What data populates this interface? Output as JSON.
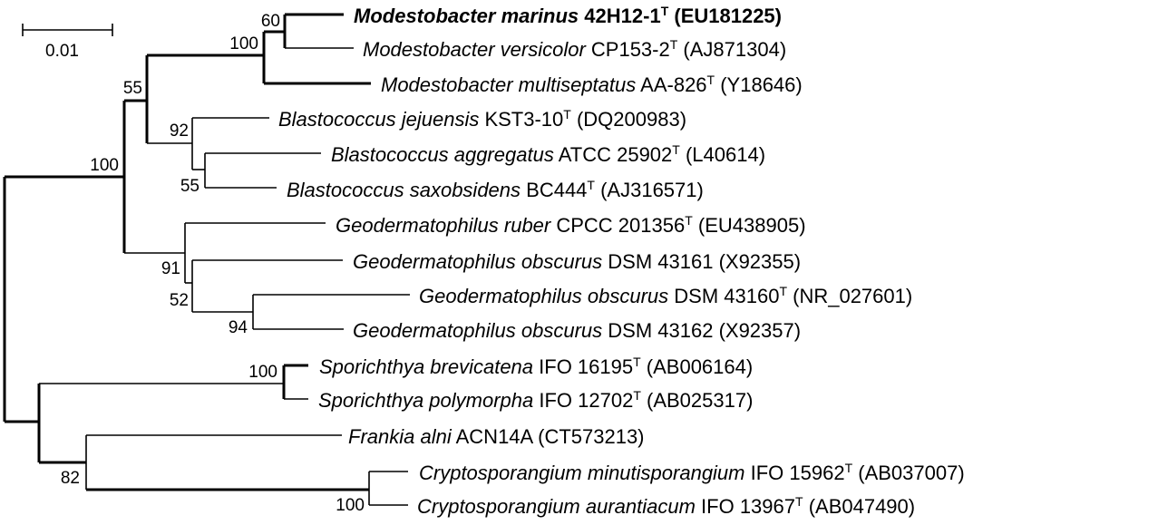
{
  "scale_bar": {
    "label": "0.01"
  },
  "taxa": [
    {
      "id": "mmar",
      "name": "Modestobacter marinus",
      "strain": "42H12-1",
      "type_strain": true,
      "accession": "(EU181225)",
      "bold": true
    },
    {
      "id": "mver",
      "name": "Modestobacter versicolor",
      "strain": "CP153-2",
      "type_strain": true,
      "accession": "(AJ871304)",
      "bold": false
    },
    {
      "id": "mmul",
      "name": "Modestobacter multiseptatus",
      "strain": "AA-826",
      "type_strain": true,
      "accession": "(Y18646)",
      "bold": false
    },
    {
      "id": "bjej",
      "name": "Blastococcus jejuensis",
      "strain": "KST3-10",
      "type_strain": true,
      "accession": "(DQ200983)",
      "bold": false
    },
    {
      "id": "bagg",
      "name": "Blastococcus aggregatus",
      "strain": "ATCC 25902",
      "type_strain": true,
      "accession": "(L40614)",
      "bold": false
    },
    {
      "id": "bsax",
      "name": "Blastococcus saxobsidens",
      "strain": "BC444",
      "type_strain": true,
      "accession": "(AJ316571)",
      "bold": false
    },
    {
      "id": "grub",
      "name": "Geodermatophilus ruber",
      "strain": "CPCC 201356",
      "type_strain": true,
      "accession": "(EU438905)",
      "bold": false
    },
    {
      "id": "gob1",
      "name": "Geodermatophilus obscurus",
      "strain": "DSM 43161",
      "type_strain": false,
      "accession": "(X92355)",
      "bold": false
    },
    {
      "id": "gob2",
      "name": "Geodermatophilus obscurus",
      "strain": "DSM 43160",
      "type_strain": true,
      "accession": "(NR_027601)",
      "bold": false
    },
    {
      "id": "gob3",
      "name": "Geodermatophilus obscurus",
      "strain": "DSM 43162",
      "type_strain": false,
      "accession": "(X92357)",
      "bold": false
    },
    {
      "id": "sbre",
      "name": "Sporichthya brevicatena",
      "strain": "IFO 16195",
      "type_strain": true,
      "accession": "(AB006164)",
      "bold": false
    },
    {
      "id": "spol",
      "name": "Sporichthya polymorpha",
      "strain": "IFO 12702",
      "type_strain": true,
      "accession": "(AB025317)",
      "bold": false
    },
    {
      "id": "faln",
      "name": "Frankia alni",
      "strain": "ACN14A",
      "type_strain": false,
      "accession": "(CT573213)",
      "bold": false
    },
    {
      "id": "cmin",
      "name": "Cryptosporangium minutisporangium",
      "strain": "IFO 15962",
      "type_strain": true,
      "accession": "(AB037007)",
      "bold": false
    },
    {
      "id": "caur",
      "name": "Cryptosporangium aurantiacum",
      "strain": "IFO 13967",
      "type_strain": true,
      "accession": "(AB047490)",
      "bold": false
    }
  ],
  "bootstrap": {
    "mod_pair": "60",
    "modestobacter": "100",
    "mod_blast": "55",
    "blastococcus": "92",
    "blast_pair": "55",
    "main_clade": "100",
    "geo_all": "91",
    "geo_obscurus": "52",
    "geo_pair": "94",
    "sporichthya": "100",
    "frank_crypt": "82",
    "cryptosporangium": "100"
  }
}
